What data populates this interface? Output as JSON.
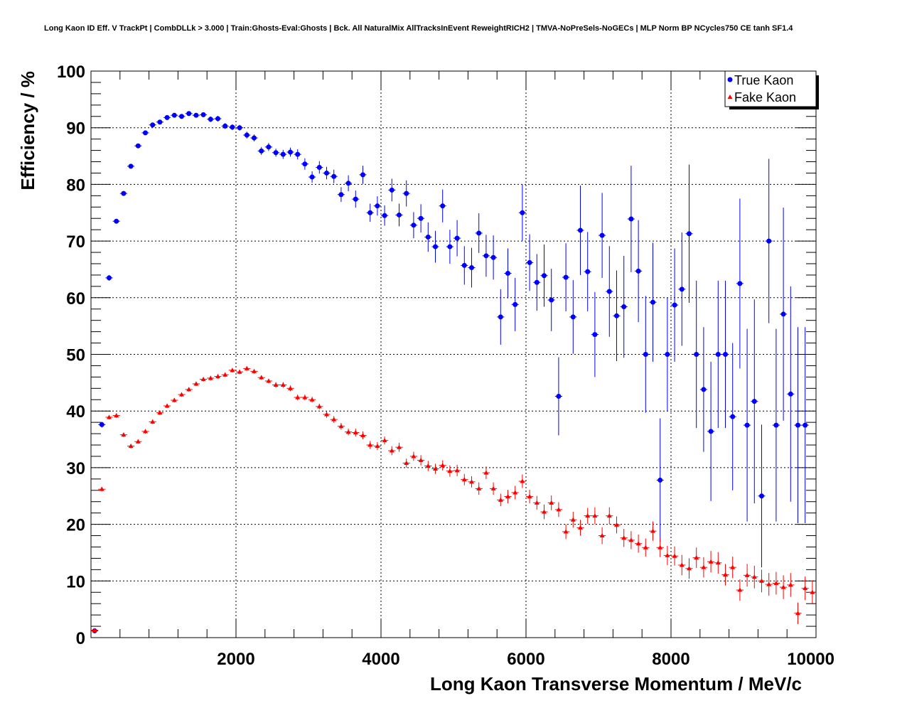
{
  "chart_data": {
    "type": "scatter",
    "title": "Long Kaon ID Eff. V TrackPt | CombDLLk > 3.000 | Train:Ghosts-Eval:Ghosts | Bck. All NaturalMix AllTracksInEvent ReweightRICH2 | TMVA-NoPreSels-NoGECs | MLP Norm BP NCycles750 CE tanh SF1.4",
    "xlabel": "Long Kaon Transverse Momentum / MeV/c",
    "ylabel": "Efficiency / %",
    "xlim": [
      0,
      10000
    ],
    "ylim": [
      0,
      100
    ],
    "x_ticks": [
      "2000",
      "4000",
      "6000",
      "8000",
      "10000"
    ],
    "y_ticks": [
      "0",
      "10",
      "20",
      "30",
      "40",
      "50",
      "60",
      "70",
      "80",
      "90",
      "100"
    ],
    "grid": true,
    "legend_position": "top-right",
    "series": [
      {
        "name": "True Kaon",
        "color": "#0000ff",
        "marker": "circle",
        "x": [
          50,
          150,
          250,
          350,
          450,
          550,
          650,
          750,
          850,
          950,
          1050,
          1150,
          1250,
          1350,
          1450,
          1550,
          1650,
          1750,
          1850,
          1950,
          2050,
          2150,
          2250,
          2350,
          2450,
          2550,
          2650,
          2750,
          2850,
          2950,
          3050,
          3150,
          3250,
          3350,
          3450,
          3550,
          3650,
          3750,
          3850,
          3950,
          4050,
          4150,
          4250,
          4350,
          4450,
          4550,
          4650,
          4750,
          4850,
          4950,
          5050,
          5150,
          5250,
          5350,
          5450,
          5550,
          5650,
          5750,
          5850,
          5950,
          6050,
          6150,
          6250,
          6350,
          6450,
          6550,
          6650,
          6750,
          6850,
          6950,
          7050,
          7150,
          7250,
          7350,
          7450,
          7550,
          7650,
          7750,
          7850,
          7950,
          8050,
          8150,
          8250,
          8350,
          8450,
          8550,
          8650,
          8750,
          8850,
          8950,
          9050,
          9150,
          9250,
          9350,
          9450,
          9550,
          9650,
          9750,
          9850,
          9950
        ],
        "y": [
          1.2,
          37.6,
          63.5,
          73.5,
          78.4,
          83.2,
          86.8,
          89.1,
          90.5,
          91.0,
          91.8,
          92.2,
          92.0,
          92.5,
          92.2,
          92.3,
          91.5,
          91.6,
          90.3,
          90.1,
          90.0,
          88.7,
          88.2,
          85.9,
          86.6,
          85.6,
          85.3,
          85.7,
          85.3,
          83.6,
          81.3,
          83.0,
          82.0,
          81.4,
          78.2,
          80.2,
          77.4,
          81.7,
          75.0,
          76.2,
          74.5,
          79.0,
          74.6,
          78.4,
          72.8,
          74.0,
          70.7,
          69.0,
          76.2,
          69.0,
          70.5,
          65.7,
          65.3,
          71.4,
          67.4,
          67.1,
          56.6,
          64.3,
          58.8,
          75.0,
          66.2,
          62.7,
          63.9,
          59.6,
          42.6,
          63.6,
          56.6,
          71.9,
          64.6,
          53.5,
          71.0,
          61.1,
          56.8,
          58.4,
          73.9,
          64.7,
          50.0,
          59.2,
          27.8,
          50.0,
          58.7,
          61.5,
          71.3,
          50.0,
          43.8,
          36.4,
          50.0,
          50.0,
          39.0,
          62.5,
          37.5,
          41.7,
          25.0,
          70.0,
          37.5,
          57.1,
          43.0,
          37.5,
          37.5,
          null
        ],
        "err": [
          0.4,
          0.5,
          0.5,
          0.4,
          0.4,
          0.4,
          0.4,
          0.4,
          0.4,
          0.4,
          0.4,
          0.4,
          0.4,
          0.4,
          0.4,
          0.4,
          0.5,
          0.5,
          0.5,
          0.5,
          0.5,
          0.6,
          0.6,
          0.7,
          0.7,
          0.7,
          0.8,
          0.8,
          0.9,
          1.0,
          1.0,
          1.1,
          1.1,
          1.2,
          1.3,
          1.4,
          1.5,
          1.6,
          1.6,
          1.7,
          1.8,
          2.0,
          2.0,
          2.3,
          2.3,
          2.5,
          2.6,
          2.8,
          2.9,
          3.0,
          3.2,
          3.4,
          3.5,
          3.5,
          3.7,
          3.9,
          4.9,
          4.4,
          4.7,
          5.0,
          5.0,
          5.0,
          5.5,
          5.5,
          6.9,
          6.0,
          6.5,
          7.9,
          7.0,
          7.5,
          7.5,
          8.0,
          8.0,
          9.0,
          9.4,
          9.0,
          10.3,
          10.5,
          10.9,
          10.0,
          10.0,
          10.0,
          12.2,
          13.0,
          11.0,
          12.3,
          13.0,
          13.0,
          13.0,
          15.0,
          17.0,
          18.0,
          12.6,
          14.5,
          17.0,
          18.8,
          19.0,
          17.3,
          17.3,
          null
        ]
      },
      {
        "name": "Fake Kaon",
        "color": "#ff0000",
        "marker": "triangle",
        "x": [
          50,
          150,
          250,
          350,
          450,
          550,
          650,
          750,
          850,
          950,
          1050,
          1150,
          1250,
          1350,
          1450,
          1550,
          1650,
          1750,
          1850,
          1950,
          2050,
          2150,
          2250,
          2350,
          2450,
          2550,
          2650,
          2750,
          2850,
          2950,
          3050,
          3150,
          3250,
          3350,
          3450,
          3550,
          3650,
          3750,
          3850,
          3950,
          4050,
          4150,
          4250,
          4350,
          4450,
          4550,
          4650,
          4750,
          4850,
          4950,
          5050,
          5150,
          5250,
          5350,
          5450,
          5550,
          5650,
          5750,
          5850,
          5950,
          6050,
          6150,
          6250,
          6350,
          6450,
          6550,
          6650,
          6750,
          6850,
          6950,
          7050,
          7150,
          7250,
          7350,
          7450,
          7550,
          7650,
          7750,
          7850,
          7950,
          8050,
          8150,
          8250,
          8350,
          8450,
          8550,
          8650,
          8750,
          8850,
          8950,
          9050,
          9150,
          9250,
          9350,
          9450,
          9550,
          9650,
          9750,
          9850,
          9950
        ],
        "y": [
          1.3,
          26.2,
          38.9,
          39.2,
          35.8,
          33.8,
          34.6,
          36.4,
          38.1,
          39.7,
          40.9,
          41.9,
          42.9,
          43.8,
          44.8,
          45.6,
          45.8,
          46.1,
          46.4,
          47.2,
          46.9,
          47.5,
          47.0,
          45.9,
          45.3,
          44.6,
          44.6,
          44.0,
          42.4,
          42.4,
          42.0,
          40.8,
          39.4,
          38.5,
          37.3,
          36.3,
          36.2,
          35.7,
          34.0,
          33.8,
          34.8,
          33.0,
          33.6,
          30.8,
          32.0,
          31.3,
          30.3,
          29.8,
          30.4,
          29.4,
          29.5,
          27.9,
          27.5,
          26.3,
          29.1,
          26.3,
          24.3,
          24.9,
          25.6,
          27.6,
          24.9,
          23.8,
          22.2,
          23.8,
          22.6,
          18.7,
          20.8,
          19.4,
          21.5,
          21.5,
          18.0,
          21.5,
          19.9,
          17.6,
          17.2,
          16.6,
          15.9,
          18.8,
          15.9,
          14.5,
          14.4,
          12.8,
          12.2,
          14.1,
          12.4,
          13.4,
          13.2,
          11.1,
          12.4,
          8.4,
          11.0,
          10.7,
          10.0,
          9.4,
          9.6,
          8.9,
          9.3,
          4.3,
          8.7,
          8.0
        ],
        "err": [
          0.3,
          0.4,
          0.4,
          0.4,
          0.4,
          0.4,
          0.4,
          0.4,
          0.4,
          0.4,
          0.4,
          0.4,
          0.4,
          0.4,
          0.4,
          0.4,
          0.4,
          0.4,
          0.4,
          0.4,
          0.4,
          0.4,
          0.4,
          0.4,
          0.4,
          0.5,
          0.5,
          0.5,
          0.5,
          0.5,
          0.5,
          0.5,
          0.6,
          0.6,
          0.6,
          0.6,
          0.7,
          0.7,
          0.7,
          0.7,
          0.7,
          0.8,
          0.8,
          0.8,
          0.8,
          0.9,
          0.9,
          0.9,
          0.9,
          1.0,
          1.0,
          1.0,
          1.0,
          1.1,
          1.1,
          1.1,
          1.1,
          1.2,
          1.2,
          1.2,
          1.2,
          1.2,
          1.3,
          1.3,
          1.3,
          1.3,
          1.4,
          1.4,
          1.4,
          1.5,
          1.5,
          1.5,
          1.5,
          1.6,
          1.6,
          1.6,
          1.6,
          1.7,
          1.7,
          1.7,
          1.7,
          1.8,
          1.8,
          1.8,
          1.8,
          1.9,
          1.9,
          1.9,
          1.9,
          1.9,
          2.0,
          2.0,
          2.0,
          2.0,
          2.0,
          2.1,
          2.1,
          1.9,
          2.1,
          2.1
        ]
      }
    ]
  }
}
